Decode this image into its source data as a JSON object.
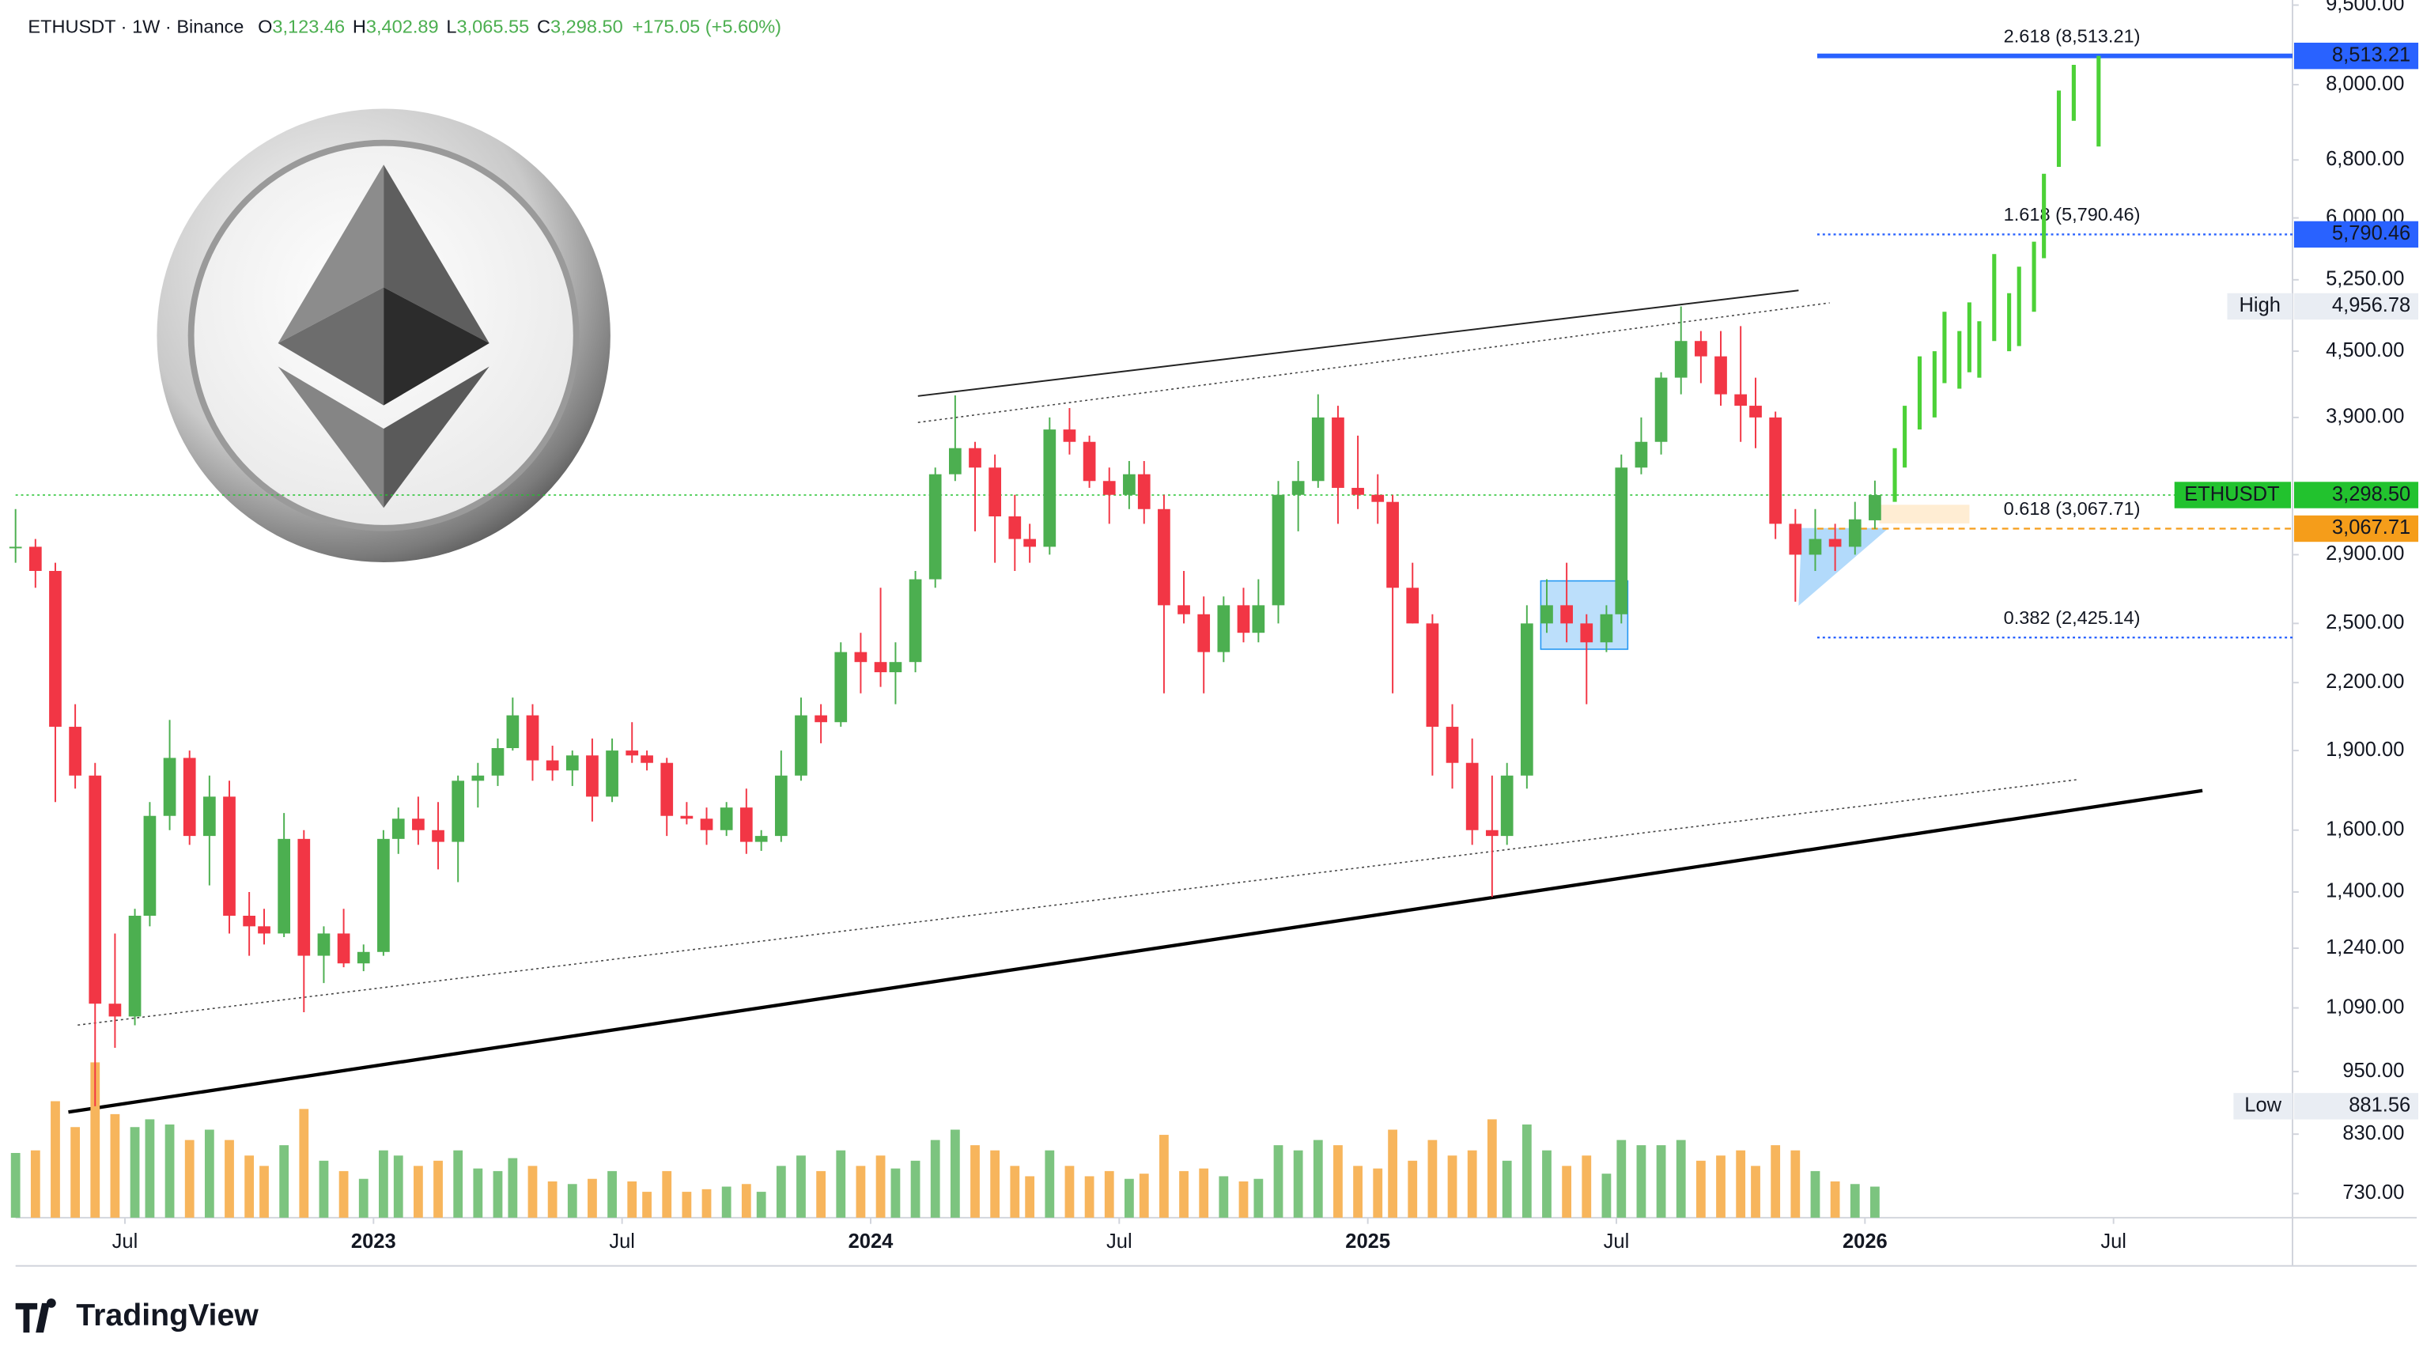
{
  "chart_data": {
    "type": "candlestick",
    "title": "ETHUSDT · 1W · Binance",
    "ohlc": [
      {
        "label": "O",
        "value": "3,123.46"
      },
      {
        "label": "H",
        "value": "3,402.89"
      },
      {
        "label": "L",
        "value": "3,065.55"
      },
      {
        "label": "C",
        "value": "3,298.50"
      }
    ],
    "change": "+175.05 (+5.60%)",
    "x": [
      2022.28,
      2022.32,
      2022.36,
      2022.4,
      2022.44,
      2022.48,
      2022.52,
      2022.55,
      2022.59,
      2022.63,
      2022.67,
      2022.71,
      2022.75,
      2022.78,
      2022.82,
      2022.86,
      2022.9,
      2022.94,
      2022.98,
      2023.02,
      2023.05,
      2023.09,
      2023.13,
      2023.17,
      2023.21,
      2023.25,
      2023.28,
      2023.32,
      2023.36,
      2023.4,
      2023.44,
      2023.48,
      2023.52,
      2023.55,
      2023.59,
      2023.63,
      2023.67,
      2023.71,
      2023.75,
      2023.78,
      2023.82,
      2023.86,
      2023.9,
      2023.94,
      2023.98,
      2024.02,
      2024.05,
      2024.09,
      2024.13,
      2024.17,
      2024.21,
      2024.25,
      2024.29,
      2024.32,
      2024.36,
      2024.4,
      2024.44,
      2024.48,
      2024.52,
      2024.55,
      2024.59,
      2024.63,
      2024.67,
      2024.71,
      2024.75,
      2024.78,
      2024.82,
      2024.86,
      2024.9,
      2024.94,
      2024.98,
      2025.02,
      2025.05,
      2025.09,
      2025.13,
      2025.17,
      2025.21,
      2025.25,
      2025.28,
      2025.32,
      2025.36,
      2025.4,
      2025.44,
      2025.48,
      2025.51,
      2025.55,
      2025.59,
      2025.63,
      2025.67,
      2025.71,
      2025.75,
      2025.78,
      2025.82,
      2025.86,
      2025.9,
      2025.94,
      2025.98,
      2026.02
    ],
    "open": [
      2950,
      2950,
      2800,
      2000,
      1800,
      1100,
      1070,
      1330,
      1650,
      1870,
      1580,
      1720,
      1330,
      1300,
      1280,
      1570,
      1220,
      1280,
      1200,
      1230,
      1570,
      1640,
      1600,
      1560,
      1780,
      1800,
      1910,
      2050,
      1860,
      1820,
      1880,
      1720,
      1900,
      1880,
      1850,
      1650,
      1640,
      1600,
      1680,
      1560,
      1580,
      1800,
      2050,
      2020,
      2350,
      2300,
      2250,
      2300,
      2750,
      3450,
      3650,
      3500,
      3150,
      3000,
      2950,
      3800,
      3700,
      3400,
      3300,
      3450,
      3200,
      2600,
      2550,
      2350,
      2600,
      2450,
      2600,
      3300,
      3400,
      3900,
      3350,
      3300,
      3250,
      2700,
      2500,
      2000,
      1850,
      1600,
      1580,
      1800,
      2500,
      2600,
      2500,
      2400,
      2550,
      3500,
      3700,
      4250,
      4600,
      4450,
      4100,
      4000,
      3900,
      3100,
      2900,
      3000,
      2950,
      3123.46
    ],
    "high": [
      3200,
      3000,
      2850,
      2100,
      1850,
      1280,
      1350,
      1700,
      2030,
      1900,
      1800,
      1780,
      1400,
      1350,
      1660,
      1600,
      1300,
      1350,
      1250,
      1600,
      1680,
      1720,
      1700,
      1800,
      1850,
      1950,
      2130,
      2100,
      1920,
      1900,
      1950,
      1950,
      2020,
      1900,
      1870,
      1700,
      1680,
      1700,
      1750,
      1600,
      1900,
      2130,
      2100,
      2400,
      2450,
      2700,
      2400,
      2800,
      3500,
      4090,
      3700,
      3600,
      3300,
      3100,
      3900,
      3980,
      3750,
      3500,
      3550,
      3550,
      3300,
      2800,
      2650,
      2650,
      2700,
      2750,
      3400,
      3550,
      4100,
      4000,
      3750,
      3450,
      3300,
      2850,
      2550,
      2100,
      1950,
      1800,
      1850,
      2600,
      2750,
      2850,
      2550,
      2600,
      3600,
      3900,
      4300,
      4956.78,
      4700,
      4700,
      4750,
      4250,
      3950,
      3200,
      3200,
      3100,
      3250,
      3402.89
    ],
    "low": [
      2850,
      2700,
      1700,
      1750,
      881.56,
      1000,
      1050,
      1300,
      1600,
      1550,
      1420,
      1280,
      1220,
      1250,
      1270,
      1080,
      1150,
      1190,
      1180,
      1220,
      1520,
      1550,
      1470,
      1430,
      1680,
      1760,
      1900,
      1780,
      1780,
      1760,
      1630,
      1700,
      1850,
      1820,
      1580,
      1620,
      1550,
      1580,
      1520,
      1530,
      1560,
      1780,
      1930,
      2000,
      2150,
      2180,
      2100,
      2250,
      2700,
      3400,
      3050,
      2850,
      2800,
      2850,
      2900,
      3600,
      3350,
      3100,
      3200,
      3100,
      2150,
      2500,
      2150,
      2300,
      2400,
      2400,
      2500,
      3050,
      3350,
      3100,
      3200,
      3100,
      2150,
      2500,
      1800,
      1750,
      1550,
      1385,
      1550,
      1750,
      2450,
      2400,
      2100,
      2350,
      2500,
      3450,
      3600,
      4100,
      4200,
      4000,
      3700,
      3650,
      3000,
      2620,
      2800,
      2800,
      2900,
      3065.55
    ],
    "close": [
      2950,
      2800,
      2000,
      1800,
      1100,
      1070,
      1330,
      1650,
      1870,
      1580,
      1720,
      1330,
      1300,
      1280,
      1570,
      1220,
      1280,
      1200,
      1230,
      1570,
      1640,
      1600,
      1560,
      1780,
      1800,
      1910,
      2050,
      1860,
      1820,
      1880,
      1720,
      1900,
      1880,
      1850,
      1650,
      1640,
      1600,
      1680,
      1560,
      1580,
      1800,
      2050,
      2020,
      2350,
      2300,
      2250,
      2300,
      2750,
      3450,
      3650,
      3500,
      3150,
      3000,
      2950,
      3800,
      3700,
      3400,
      3300,
      3450,
      3200,
      2600,
      2550,
      2350,
      2600,
      2450,
      2600,
      3300,
      3400,
      3900,
      3350,
      3300,
      3250,
      2700,
      2500,
      2000,
      1850,
      1600,
      1580,
      1800,
      2500,
      2600,
      2500,
      2400,
      2550,
      3500,
      3700,
      4250,
      4600,
      4450,
      4100,
      4000,
      3900,
      3100,
      2900,
      3000,
      2950,
      3130,
      3298.5
    ],
    "volume": [
      2.5,
      2.6,
      4.5,
      3.5,
      6.0,
      4.0,
      3.5,
      3.8,
      3.6,
      3.0,
      3.4,
      3.0,
      2.4,
      2.0,
      2.8,
      4.2,
      2.2,
      1.8,
      1.5,
      2.6,
      2.4,
      2.0,
      2.2,
      2.6,
      1.9,
      1.8,
      2.3,
      2.0,
      1.4,
      1.3,
      1.5,
      1.8,
      1.4,
      1.0,
      1.8,
      1.0,
      1.1,
      1.2,
      1.3,
      1.0,
      2.0,
      2.4,
      1.8,
      2.6,
      2.0,
      2.4,
      1.9,
      2.2,
      3.0,
      3.4,
      2.8,
      2.6,
      2.0,
      1.6,
      2.6,
      2.0,
      1.6,
      1.8,
      1.5,
      1.7,
      3.2,
      1.8,
      1.9,
      1.6,
      1.4,
      1.5,
      2.8,
      2.6,
      3.0,
      2.8,
      2.0,
      1.9,
      3.4,
      2.2,
      3.0,
      2.4,
      2.6,
      3.8,
      2.2,
      3.6,
      2.6,
      2.0,
      2.4,
      1.7,
      3.0,
      2.8,
      2.8,
      3.0,
      2.2,
      2.4,
      2.6,
      2.0,
      2.8,
      2.6,
      1.8,
      1.4,
      1.3,
      1.2
    ],
    "up_color": "#4caf50",
    "down_color": "#f23645",
    "volume_up_color": "#7cc47f",
    "volume_down_color": "#f7b55c",
    "projection": {
      "color": "#4cd137",
      "x": [
        2026.06,
        2026.08,
        2026.11,
        2026.14,
        2026.16,
        2026.19,
        2026.21,
        2026.23,
        2026.26,
        2026.29,
        2026.31,
        2026.34,
        2026.36,
        2026.39,
        2026.42,
        2026.47
      ],
      "low": [
        3250,
        3500,
        3800,
        3900,
        4200,
        4150,
        4300,
        4250,
        4600,
        4500,
        4550,
        4900,
        5500,
        6700,
        7400,
        7000
      ],
      "high": [
        3650,
        4000,
        4450,
        4500,
        4900,
        4700,
        5000,
        4800,
        5550,
        5100,
        5400,
        5700,
        6600,
        7900,
        8350,
        8513.21
      ]
    },
    "xlim": [
      2022.28,
      2026.86
    ],
    "xticks": [
      {
        "value": 2022.5,
        "label": "Jul"
      },
      2023,
      {
        "value": 2023.5,
        "label": "Jul"
      },
      2024,
      {
        "value": 2024.5,
        "label": "Jul"
      },
      2025,
      {
        "value": 2025.5,
        "label": "Jul"
      },
      2026,
      {
        "value": 2026.5,
        "label": "Jul"
      }
    ],
    "ylim": [
      693,
      9605
    ],
    "log_scale": true,
    "yticks": [
      {
        "value": 730,
        "label": "730.00"
      },
      {
        "value": 830,
        "label": "830.00"
      },
      {
        "value": 950,
        "label": "950.00"
      },
      {
        "value": 1090,
        "label": "1,090.00"
      },
      {
        "value": 1240,
        "label": "1,240.00"
      },
      {
        "value": 1400,
        "label": "1,400.00"
      },
      {
        "value": 1600,
        "label": "1,600.00"
      },
      {
        "value": 1900,
        "label": "1,900.00"
      },
      {
        "value": 2200,
        "label": "2,200.00"
      },
      {
        "value": 2500,
        "label": "2,500.00"
      },
      {
        "value": 2900,
        "label": "2,900.00"
      },
      {
        "value": 3900,
        "label": "3,900.00"
      },
      {
        "value": 4500,
        "label": "4,500.00"
      },
      {
        "value": 5250,
        "label": "5,250.00"
      },
      {
        "value": 6000,
        "label": "6,000.00"
      },
      {
        "value": 6800,
        "label": "6,800.00"
      },
      {
        "value": 8000,
        "label": "8,000.00"
      },
      {
        "value": 9500,
        "label": "9,500.00"
      }
    ],
    "fib_levels": [
      {
        "label": "2.618 (8,513.21)",
        "value": 8513.21,
        "tag": "8,513.21",
        "color": "#2962ff",
        "line": "solid"
      },
      {
        "label": "1.618 (5,790.46)",
        "value": 5790.46,
        "tag": "5,790.46",
        "color": "#2962ff",
        "line": "dotted"
      },
      {
        "label": "0.618 (3,067.71)",
        "value": 3067.71,
        "tag": "3,067.71",
        "color": "#f59d1a",
        "line": "dashed"
      },
      {
        "label": "0.382 (2,425.14)",
        "value": 2425.14,
        "color": "#2962ff",
        "line": "dotted"
      }
    ],
    "last_price": {
      "name": "ETHUSDT",
      "value": 3298.5,
      "label": "3,298.50",
      "color": "#22c22e"
    },
    "high_marker": {
      "name": "High",
      "value": 4956.78,
      "label": "4,956.78"
    },
    "low_marker": {
      "name": "Low",
      "value": 881.56
    }
  },
  "branding": "TradingView"
}
